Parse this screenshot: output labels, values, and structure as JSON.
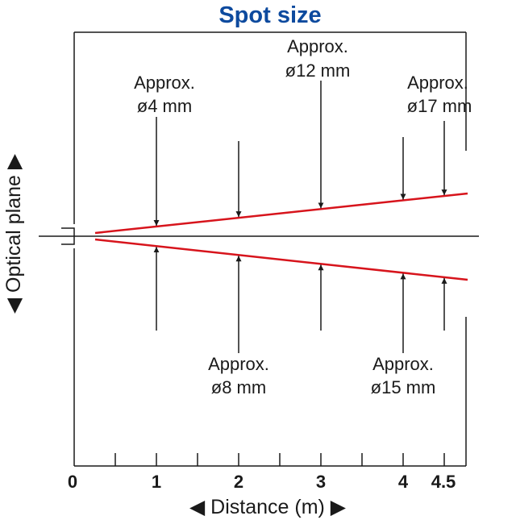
{
  "title": "Spot size",
  "y_axis_label": "◀ Optical plane ▶",
  "x_axis_label": "◀ Distance (m) ▶",
  "x_ticks": [
    "0",
    "1",
    "2",
    "3",
    "4",
    "4.5"
  ],
  "spots": [
    {
      "distance": 1,
      "line1": "Approx.",
      "line2": "ø4 mm"
    },
    {
      "distance": 2,
      "line1": "Approx.",
      "line2": "ø8 mm"
    },
    {
      "distance": 3,
      "line1": "Approx.",
      "line2": "ø12 mm"
    },
    {
      "distance": 4,
      "line1": "Approx.",
      "line2": "ø15 mm"
    },
    {
      "distance": 4.5,
      "line1": "Approx.",
      "line2": "ø17 mm"
    }
  ],
  "colors": {
    "title": "#0d4a9e",
    "beam": "#d7141c",
    "line": "#1a1a1a"
  }
}
